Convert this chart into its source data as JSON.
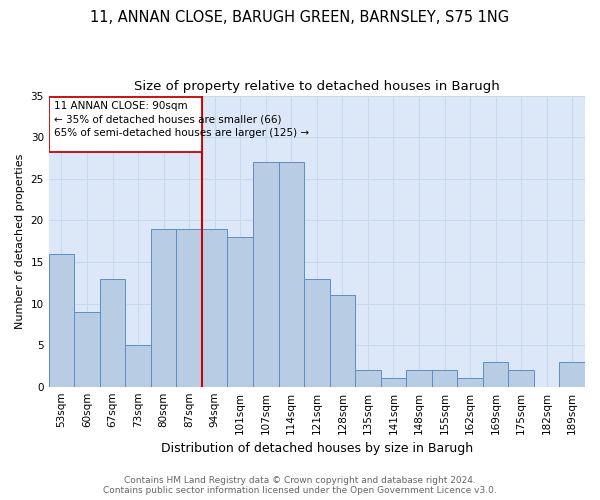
{
  "title1": "11, ANNAN CLOSE, BARUGH GREEN, BARNSLEY, S75 1NG",
  "title2": "Size of property relative to detached houses in Barugh",
  "xlabel": "Distribution of detached houses by size in Barugh",
  "ylabel": "Number of detached properties",
  "categories": [
    "53sqm",
    "60sqm",
    "67sqm",
    "73sqm",
    "80sqm",
    "87sqm",
    "94sqm",
    "101sqm",
    "107sqm",
    "114sqm",
    "121sqm",
    "128sqm",
    "135sqm",
    "141sqm",
    "148sqm",
    "155sqm",
    "162sqm",
    "169sqm",
    "175sqm",
    "182sqm",
    "189sqm"
  ],
  "values": [
    16,
    9,
    13,
    5,
    19,
    19,
    19,
    18,
    27,
    27,
    13,
    11,
    2,
    1,
    2,
    2,
    1,
    3,
    2,
    0,
    3
  ],
  "bar_color": "#b8cce4",
  "bar_edge_color": "#5b8dc8",
  "grid_color": "#c8d8ee",
  "bg_color": "#dce8f8",
  "annotation_text1": "11 ANNAN CLOSE: 90sqm",
  "annotation_text2": "← 35% of detached houses are smaller (66)",
  "annotation_text3": "65% of semi-detached houses are larger (125) →",
  "annotation_box_color": "#cc0000",
  "footer1": "Contains HM Land Registry data © Crown copyright and database right 2024.",
  "footer2": "Contains public sector information licensed under the Open Government Licence v3.0.",
  "ylim": [
    0,
    35
  ],
  "yticks": [
    0,
    5,
    10,
    15,
    20,
    25,
    30,
    35
  ],
  "title1_fontsize": 10.5,
  "title2_fontsize": 9.5,
  "xlabel_fontsize": 9,
  "ylabel_fontsize": 8,
  "tick_fontsize": 7.5,
  "footer_fontsize": 6.5
}
